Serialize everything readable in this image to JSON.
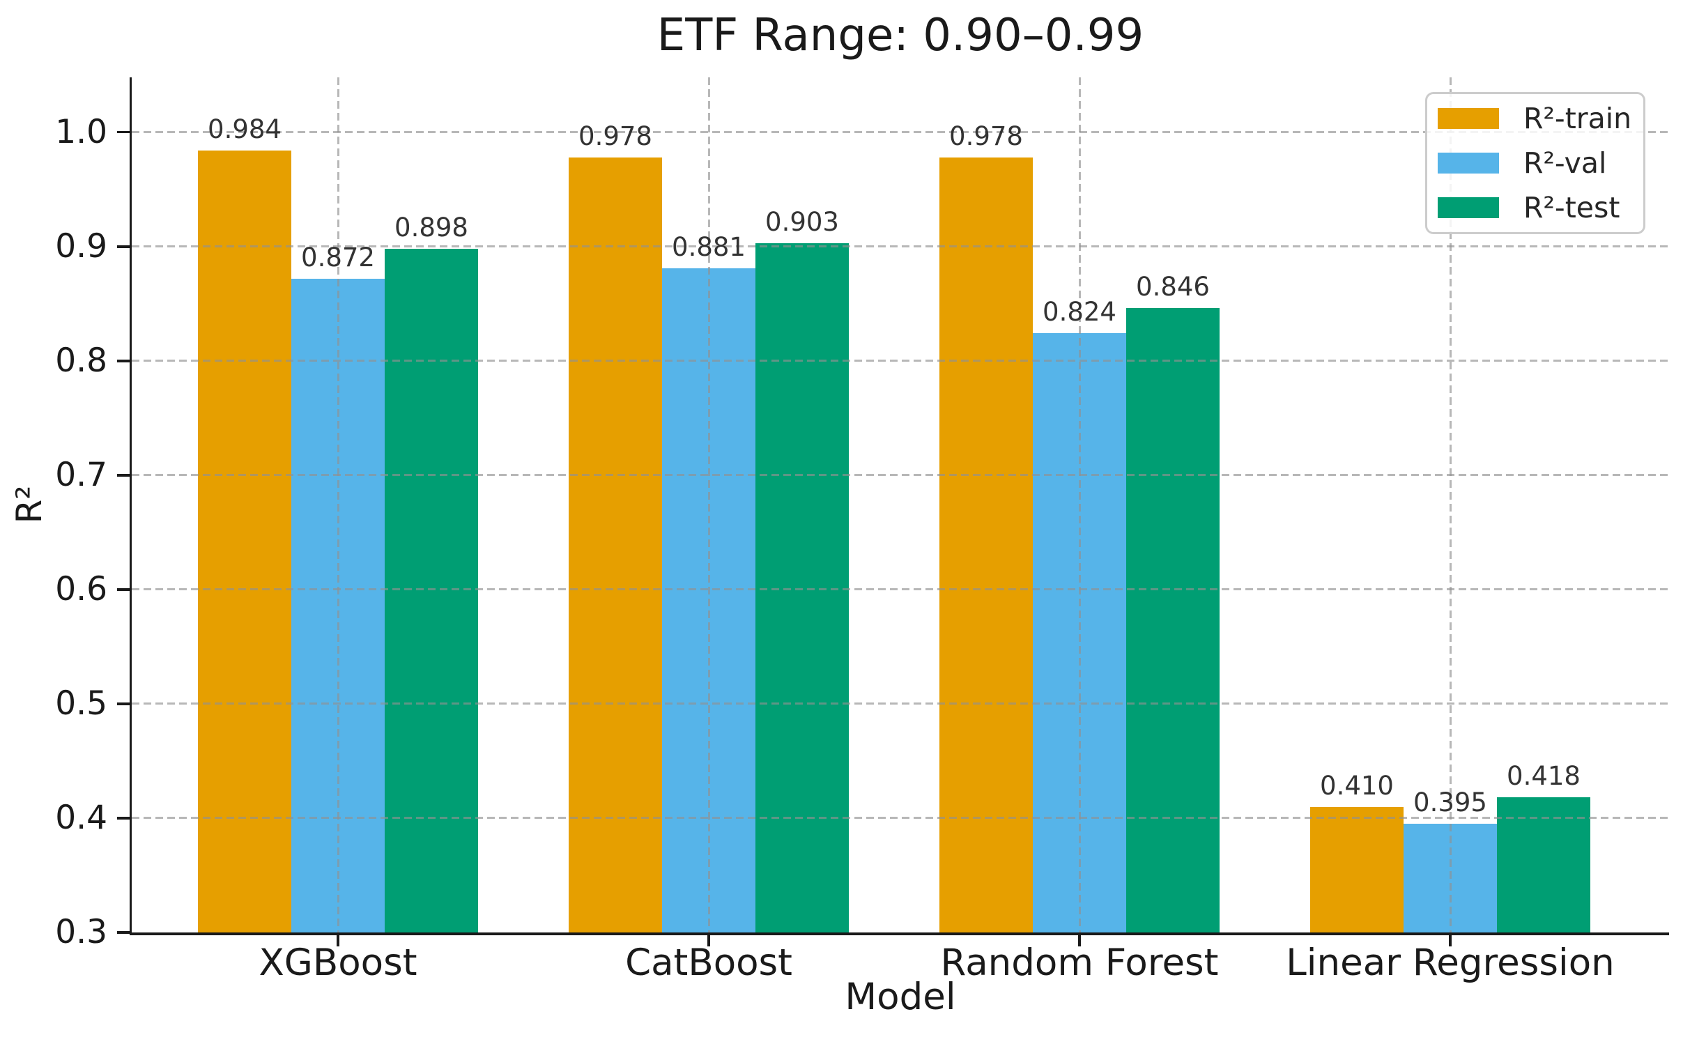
{
  "chart_data": {
    "type": "bar",
    "title": "ETF Range: 0.90–0.99",
    "xlabel": "Model",
    "ylabel": "R²",
    "categories": [
      "XGBoost",
      "CatBoost",
      "Random Forest",
      "Linear Regression"
    ],
    "series": [
      {
        "name": "R²-train",
        "color": "#E69F00",
        "values": [
          0.984,
          0.978,
          0.978,
          0.41
        ]
      },
      {
        "name": "R²-val",
        "color": "#56B4E9",
        "values": [
          0.872,
          0.881,
          0.824,
          0.395
        ]
      },
      {
        "name": "R²-test",
        "color": "#009E73",
        "values": [
          0.898,
          0.903,
          0.846,
          0.418
        ]
      }
    ],
    "ylim": [
      0.3,
      1.048
    ],
    "yticks": [
      1.0,
      0.9,
      0.8,
      0.7,
      0.6,
      0.5,
      0.4,
      0.3
    ],
    "ytick_labels": [
      "1.0",
      "0.9",
      "0.8",
      "0.7",
      "0.6",
      "0.5",
      "0.4",
      "0.3"
    ],
    "grid": true,
    "grid_style": "dashed",
    "gridlines": "horizontal-and-vertical-over-bars",
    "legend_position": "upper right",
    "value_labels_decimals": 3,
    "bar_value_labels": {
      "XGBoost": [
        "0.984",
        "0.872",
        "0.898"
      ],
      "CatBoost": [
        "0.978",
        "0.881",
        "0.903"
      ],
      "Random Forest": [
        "0.978",
        "0.824",
        "0.846"
      ],
      "Linear Regression": [
        "0.410",
        "0.395",
        "0.418"
      ]
    }
  },
  "colors": {
    "train": "#E69F00",
    "val": "#56B4E9",
    "test": "#009E73",
    "spine": "#1a1a1a",
    "grid": "#c4c4c4",
    "background": "#ffffff"
  }
}
